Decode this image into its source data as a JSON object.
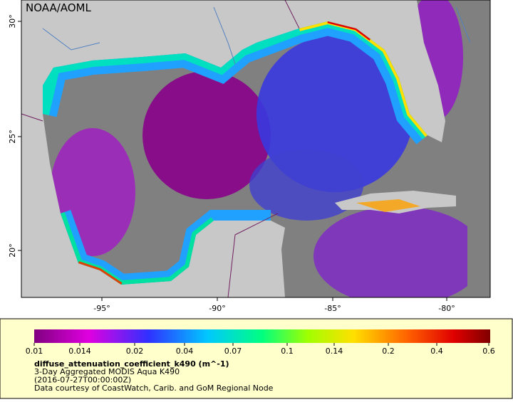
{
  "map": {
    "title": "NOAA/AOML",
    "x_axis_labels": [
      "-95°",
      "-90°",
      "-85°",
      "-80°"
    ],
    "y_axis_labels": [
      "30°",
      "25°",
      "20°"
    ]
  },
  "legend": {
    "colorbar_labels": [
      "0.01",
      "0.014",
      "0.02",
      "0.04",
      "0.07",
      "0.1",
      "0.14",
      "0.2",
      "0.4",
      "0.6"
    ],
    "variable": "diffuse_attenuation_coefficient_k490 (m^-1)",
    "lines": [
      "3-Day Aggregated MODIS Aqua K490",
      "(2016-07-27T00:00:00Z)",
      "Data courtesy of CoastWatch, Carib. and GoM Regional Node"
    ]
  }
}
